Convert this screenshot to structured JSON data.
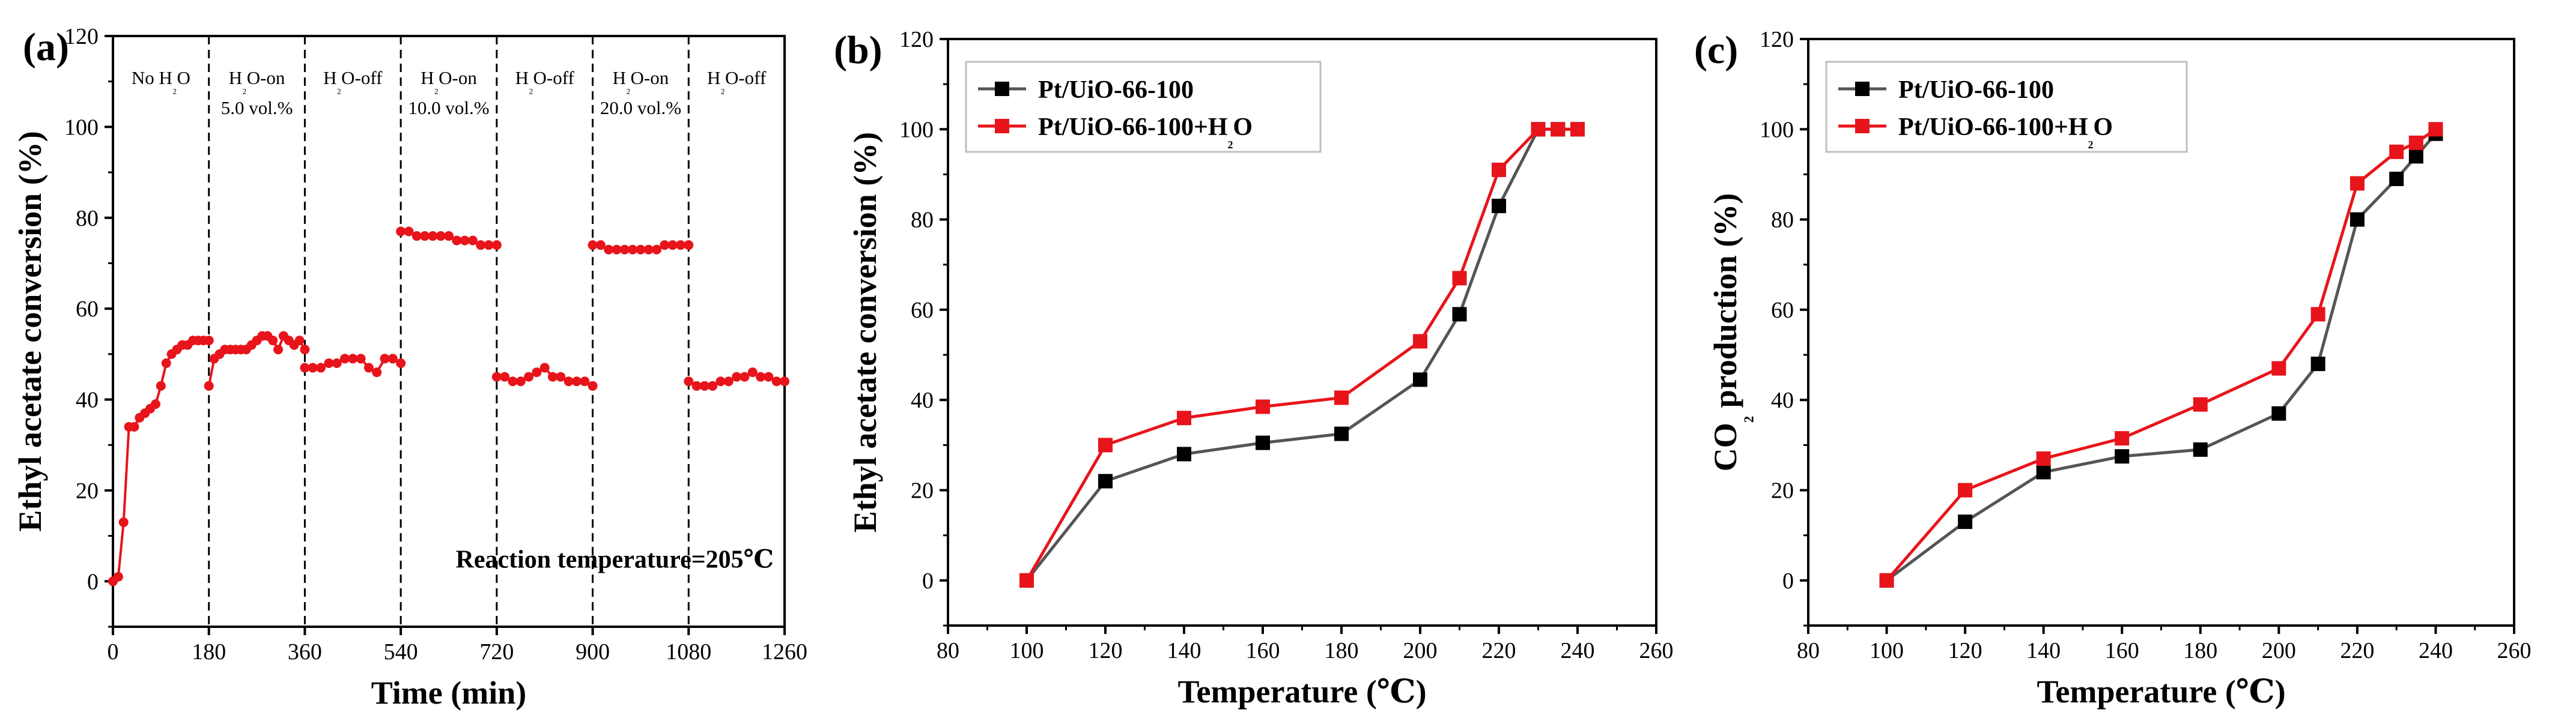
{
  "figure": {
    "panels": [
      "(a)",
      "(b)",
      "(c)"
    ]
  },
  "chart_data": [
    {
      "id": "a",
      "type": "scatter",
      "panel_label": "(a)",
      "xlabel": "Time (min)",
      "ylabel": "Ethyl acetate conversion (%)",
      "xlim": [
        0,
        1260
      ],
      "ylim": [
        -10,
        120
      ],
      "xticks": [
        "0",
        "180",
        "360",
        "540",
        "720",
        "900",
        "1080",
        "1260"
      ],
      "yticks": [
        "0",
        "20",
        "40",
        "60",
        "80",
        "100",
        "120"
      ],
      "color": "#e8141b",
      "dividers_x": [
        180,
        360,
        540,
        720,
        900,
        1080
      ],
      "segment_labels": [
        {
          "x": 90,
          "lines": [
            "No H₂O"
          ]
        },
        {
          "x": 270,
          "lines": [
            "H₂O-on",
            "5.0 vol.%"
          ]
        },
        {
          "x": 450,
          "lines": [
            "H₂O-off"
          ]
        },
        {
          "x": 630,
          "lines": [
            "H₂O-on",
            "10.0 vol.%"
          ]
        },
        {
          "x": 810,
          "lines": [
            "H₂O-off"
          ]
        },
        {
          "x": 990,
          "lines": [
            "H₂O-on",
            "20.0 vol.%"
          ]
        },
        {
          "x": 1170,
          "lines": [
            "H₂O-off"
          ]
        }
      ],
      "annotation": "Reaction temperature=205℃",
      "segments": [
        {
          "x": [
            0,
            10,
            20,
            30,
            40,
            50,
            60,
            70,
            80,
            90,
            100,
            110,
            120,
            130,
            140,
            150,
            160,
            170,
            180
          ],
          "y": [
            0,
            1,
            13,
            34,
            34,
            36,
            37,
            38,
            39,
            43,
            48,
            50,
            51,
            52,
            52,
            53,
            53,
            53,
            53
          ]
        },
        {
          "x": [
            180,
            190,
            200,
            210,
            220,
            230,
            240,
            250,
            260,
            270,
            280,
            290,
            300,
            310,
            320,
            330,
            340,
            350,
            360
          ],
          "y": [
            43,
            49,
            50,
            51,
            51,
            51,
            51,
            51,
            52,
            53,
            54,
            54,
            53,
            51,
            54,
            53,
            52,
            53,
            51
          ]
        },
        {
          "x": [
            360,
            375,
            390,
            405,
            420,
            435,
            450,
            465,
            480,
            495,
            510,
            525,
            540
          ],
          "y": [
            47,
            47,
            47,
            48,
            48,
            49,
            49,
            49,
            47,
            46,
            49,
            49,
            48
          ]
        },
        {
          "x": [
            540,
            555,
            570,
            585,
            600,
            615,
            630,
            645,
            660,
            675,
            690,
            705,
            720
          ],
          "y": [
            77,
            77,
            76,
            76,
            76,
            76,
            76,
            75,
            75,
            75,
            74,
            74,
            74
          ]
        },
        {
          "x": [
            720,
            735,
            750,
            765,
            780,
            795,
            810,
            825,
            840,
            855,
            870,
            885,
            900
          ],
          "y": [
            45,
            45,
            44,
            44,
            45,
            46,
            47,
            45,
            45,
            44,
            44,
            44,
            43
          ]
        },
        {
          "x": [
            900,
            915,
            930,
            945,
            960,
            975,
            990,
            1005,
            1020,
            1035,
            1050,
            1065,
            1080
          ],
          "y": [
            74,
            74,
            73,
            73,
            73,
            73,
            73,
            73,
            73,
            74,
            74,
            74,
            74
          ]
        },
        {
          "x": [
            1080,
            1095,
            1110,
            1125,
            1140,
            1155,
            1170,
            1185,
            1200,
            1215,
            1230,
            1245,
            1260
          ],
          "y": [
            44,
            43,
            43,
            43,
            44,
            44,
            45,
            45,
            46,
            45,
            45,
            44,
            44
          ]
        }
      ]
    },
    {
      "id": "b",
      "type": "line",
      "panel_label": "(b)",
      "xlabel": "Temperature (℃)",
      "ylabel": "Ethyl acetate conversion (%)",
      "xlim": [
        80,
        260
      ],
      "ylim": [
        -10,
        120
      ],
      "xticks": [
        "80",
        "100",
        "120",
        "140",
        "160",
        "180",
        "200",
        "220",
        "240",
        "260"
      ],
      "yticks": [
        "0",
        "20",
        "40",
        "60",
        "80",
        "100",
        "120"
      ],
      "legend_position": "top-left",
      "series": [
        {
          "name": "Pt/UiO-66-100",
          "color": "#555555",
          "marker": "#000000",
          "x": [
            100,
            120,
            140,
            160,
            180,
            200,
            210,
            220,
            230,
            235,
            240
          ],
          "y": [
            0,
            22,
            28,
            30.5,
            32.5,
            44.5,
            59,
            83,
            100,
            100,
            100
          ]
        },
        {
          "name": "Pt/UiO-66-100+H₂O",
          "color": "#e8141b",
          "marker": "#e8141b",
          "x": [
            100,
            120,
            140,
            160,
            180,
            200,
            210,
            220,
            230,
            235,
            240
          ],
          "y": [
            0,
            30,
            36,
            38.5,
            40.5,
            53,
            67,
            91,
            100,
            100,
            100
          ]
        }
      ]
    },
    {
      "id": "c",
      "type": "line",
      "panel_label": "(c)",
      "xlabel": "Temperature (℃)",
      "ylabel": "CO₂ production (%)",
      "xlim": [
        80,
        260
      ],
      "ylim": [
        -10,
        120
      ],
      "xticks": [
        "80",
        "100",
        "120",
        "140",
        "160",
        "180",
        "200",
        "220",
        "240",
        "260"
      ],
      "yticks": [
        "0",
        "20",
        "40",
        "60",
        "80",
        "100",
        "120"
      ],
      "legend_position": "top-left",
      "series": [
        {
          "name": "Pt/UiO-66-100",
          "color": "#555555",
          "marker": "#000000",
          "x": [
            100,
            120,
            140,
            160,
            180,
            200,
            210,
            220,
            230,
            235,
            240
          ],
          "y": [
            0,
            13,
            24,
            27.5,
            29,
            37,
            48,
            80,
            89,
            94,
            99
          ]
        },
        {
          "name": "Pt/UiO-66-100+H₂O",
          "color": "#e8141b",
          "marker": "#e8141b",
          "x": [
            100,
            120,
            140,
            160,
            180,
            200,
            210,
            220,
            230,
            235,
            240
          ],
          "y": [
            0,
            20,
            27,
            31.5,
            39,
            47,
            59,
            88,
            95,
            97,
            100
          ]
        }
      ]
    }
  ]
}
